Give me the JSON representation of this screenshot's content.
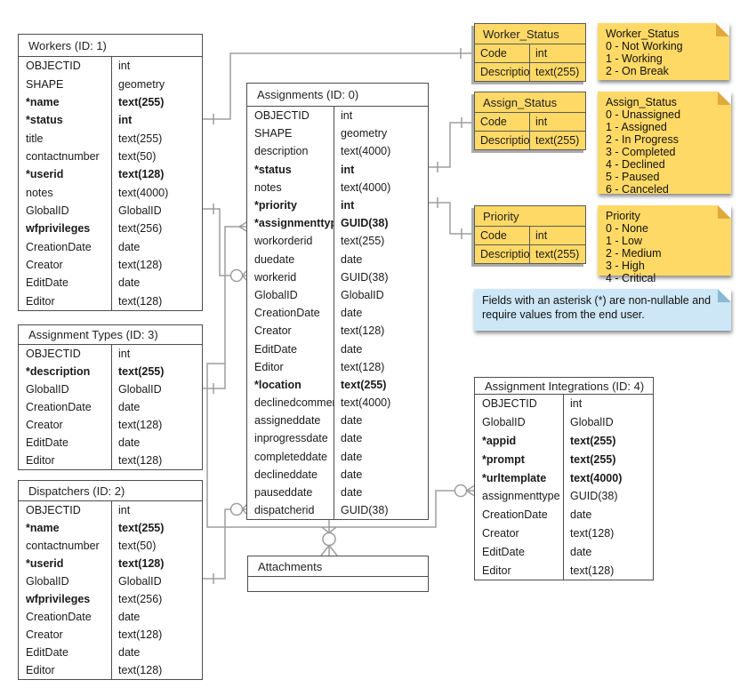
{
  "colors": {
    "entity_border": "#4d4d4d",
    "connector_line": "#9d9d9d",
    "domain_fill": "#ffd966",
    "note_yellow_fill": "#ffd966",
    "note_yellow_fold": "#dfa93d",
    "note_blue_fill": "#cde7f6",
    "note_blue_fold": "#86b9d6",
    "background": "#ffffff"
  },
  "entity_tables": {
    "workers": {
      "title": "Workers (ID: 1)",
      "rows": [
        [
          "OBJECTID",
          "int",
          ""
        ],
        [
          "SHAPE",
          "geometry",
          ""
        ],
        [
          "*name",
          "text(255)",
          "both"
        ],
        [
          "*status",
          "int",
          "both"
        ],
        [
          "title",
          "text(255)",
          ""
        ],
        [
          "contactnumber",
          "text(50)",
          ""
        ],
        [
          "*userid",
          "text(128)",
          "both"
        ],
        [
          "notes",
          "text(4000)",
          ""
        ],
        [
          "GlobalID",
          "GlobalID",
          ""
        ],
        [
          "wfprivileges",
          "text(256)",
          "name"
        ],
        [
          "CreationDate",
          "date",
          ""
        ],
        [
          "Creator",
          "text(128)",
          ""
        ],
        [
          "EditDate",
          "date",
          ""
        ],
        [
          "Editor",
          "text(128)",
          ""
        ]
      ]
    },
    "assignment_types": {
      "title": "Assignment Types (ID: 3)",
      "rows": [
        [
          "OBJECTID",
          "int",
          ""
        ],
        [
          "*description",
          "text(255)",
          "both"
        ],
        [
          "GlobalID",
          "GlobalID",
          ""
        ],
        [
          "CreationDate",
          "date",
          ""
        ],
        [
          "Creator",
          "text(128)",
          ""
        ],
        [
          "EditDate",
          "date",
          ""
        ],
        [
          "Editor",
          "text(128)",
          ""
        ]
      ]
    },
    "dispatchers": {
      "title": "Dispatchers (ID: 2)",
      "rows": [
        [
          "OBJECTID",
          "int",
          ""
        ],
        [
          "*name",
          "text(255)",
          "both"
        ],
        [
          "contactnumber",
          "text(50)",
          ""
        ],
        [
          "*userid",
          "text(128)",
          "both"
        ],
        [
          "GlobalID",
          "GlobalID",
          ""
        ],
        [
          "wfprivileges",
          "text(256)",
          "name"
        ],
        [
          "CreationDate",
          "date",
          ""
        ],
        [
          "Creator",
          "text(128)",
          ""
        ],
        [
          "EditDate",
          "date",
          ""
        ],
        [
          "Editor",
          "text(128)",
          ""
        ]
      ]
    },
    "assignments": {
      "title": "Assignments (ID: 0)",
      "rows": [
        [
          "OBJECTID",
          "int",
          ""
        ],
        [
          "SHAPE",
          "geometry",
          ""
        ],
        [
          "description",
          "text(4000)",
          ""
        ],
        [
          "*status",
          "int",
          "both"
        ],
        [
          "notes",
          "text(4000)",
          ""
        ],
        [
          "*priority",
          "int",
          "both"
        ],
        [
          "*assignmenttype",
          "GUID(38)",
          "both"
        ],
        [
          "workorderid",
          "text(255)",
          ""
        ],
        [
          "duedate",
          "date",
          ""
        ],
        [
          "workerid",
          "GUID(38)",
          ""
        ],
        [
          "GlobalID",
          "GlobalID",
          ""
        ],
        [
          "CreationDate",
          "date",
          ""
        ],
        [
          "Creator",
          "text(128)",
          ""
        ],
        [
          "EditDate",
          "date",
          ""
        ],
        [
          "Editor",
          "text(128)",
          ""
        ],
        [
          "*location",
          "text(255)",
          "both"
        ],
        [
          "declinedcomment",
          "text(4000)",
          ""
        ],
        [
          "assigneddate",
          "date",
          ""
        ],
        [
          "inprogressdate",
          "date",
          ""
        ],
        [
          "completeddate",
          "date",
          ""
        ],
        [
          "declineddate",
          "date",
          ""
        ],
        [
          "pauseddate",
          "date",
          ""
        ],
        [
          "dispatcherid",
          "GUID(38)",
          ""
        ]
      ]
    },
    "attachments": {
      "title": "Attachments",
      "rows": []
    },
    "assignment_integrations": {
      "title": "Assignment Integrations (ID: 4)",
      "rows": [
        [
          "OBJECTID",
          "int",
          ""
        ],
        [
          "GlobalID",
          "GlobalID",
          ""
        ],
        [
          "*appid",
          "text(255)",
          "both"
        ],
        [
          "*prompt",
          "text(255)",
          "both"
        ],
        [
          "*urltemplate",
          "text(4000)",
          "both"
        ],
        [
          "assignmenttype",
          "GUID(38)",
          ""
        ],
        [
          "CreationDate",
          "date",
          ""
        ],
        [
          "Creator",
          "text(128)",
          ""
        ],
        [
          "EditDate",
          "date",
          ""
        ],
        [
          "Editor",
          "text(128)",
          ""
        ]
      ]
    }
  },
  "domain_tables": {
    "worker_status": {
      "title": "Worker_Status",
      "rows": [
        [
          "Code",
          "int",
          ""
        ],
        [
          "Description",
          "text(255)",
          ""
        ]
      ]
    },
    "assign_status": {
      "title": "Assign_Status",
      "rows": [
        [
          "Code",
          "int",
          ""
        ],
        [
          "Description",
          "text(255)",
          ""
        ]
      ]
    },
    "priority": {
      "title": "Priority",
      "rows": [
        [
          "Code",
          "int",
          ""
        ],
        [
          "Description",
          "text(255)",
          ""
        ]
      ]
    }
  },
  "notes": {
    "worker_status": {
      "lines": [
        "Worker_Status",
        "0 - Not Working",
        "1 - Working",
        "2 - On Break"
      ]
    },
    "assign_status": {
      "lines": [
        "Assign_Status",
        "0 - Unassigned",
        "1 - Assigned",
        "2 - In Progress",
        "3 - Completed",
        "4 - Declined",
        "5 - Paused",
        "6 - Canceled"
      ]
    },
    "priority": {
      "lines": [
        "Priority",
        "0 - None",
        "1 - Low",
        "2 - Medium",
        "3 - High",
        "4 - Critical"
      ]
    },
    "asterisk": {
      "lines": [
        "Fields with an asterisk (*) are non-nullable and require values from the end user."
      ]
    }
  }
}
